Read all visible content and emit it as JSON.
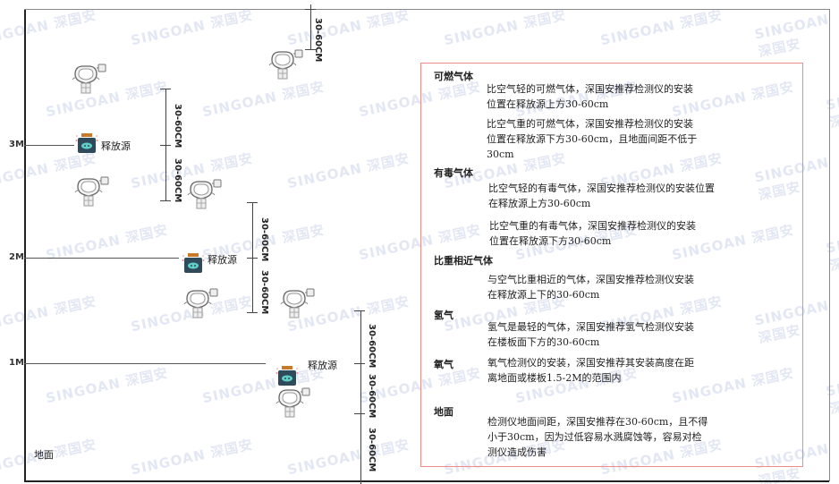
{
  "watermark": "SINGOAN 深国安",
  "levels": {
    "m3": "3M",
    "m2": "2M",
    "m1": "1M",
    "ground": "地面"
  },
  "dimension_label": "30-60CM",
  "source_label": "释放源",
  "panel": {
    "sections": [
      {
        "heading": "可燃气体",
        "paragraphs": [
          "比空气轻的可燃气体，深国安推荐检测仪的安装\n位置在释放源上方30-60cm",
          "比空气重的可燃气体，深国安推荐检测仪的安装\n位置在释放源下方30-60cm，且地面间距不低于\n30cm"
        ]
      },
      {
        "heading": "有毒气体",
        "paragraphs": [
          "比空气轻的有毒气体，深国安推荐检测仪的安装位置\n在释放源上方30-60cm",
          "比空气重的有毒气体，深国安推荐检测仪的安装\n位置在释放源下方30-60cm"
        ]
      },
      {
        "heading": "比重相近气体",
        "paragraphs": [
          "与空气比重相近的气体，深国安推荐检测仪安装\n在释放源上下的30-60cm"
        ]
      },
      {
        "heading": "氢气",
        "paragraphs": [
          "氢气是最轻的气体，深国安推荐氢气检测仪安装\n在楼板面下方的30-60cm"
        ]
      },
      {
        "heading": "氧气",
        "paragraphs": [
          "氧气检测仪的安装，深国安推荐其安装高度在距\n离地面或楼板1.5-2M的范围内"
        ]
      },
      {
        "heading": "地面",
        "paragraphs": [
          "检测仪地面间距，深国安推荐在30-60cm，且不得\n小于30cm，因为过低容易水溅腐蚀等，容易对检\n测仪造成伤害"
        ]
      }
    ]
  },
  "colors": {
    "panel_border": "#f08a8a",
    "source_body": "#2f4a5a",
    "source_cap": "#c77a2a",
    "source_icon": "#5fd0c8"
  }
}
